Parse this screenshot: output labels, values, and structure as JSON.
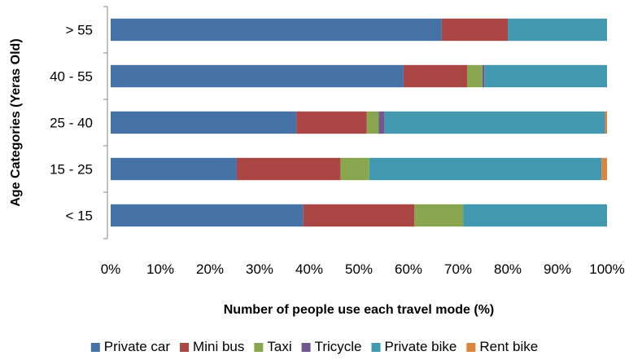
{
  "chart_data": {
    "type": "bar",
    "orientation": "horizontal",
    "stacked": "percent",
    "categories": [
      "< 15",
      "15 - 25",
      "25 - 40",
      "40 - 55",
      "> 55"
    ],
    "xlabel": "Number of people use each travel mode (%)",
    "ylabel": "Age Categories  (Yeras Old)",
    "xlim": [
      0,
      100
    ],
    "xticks": [
      "0%",
      "10%",
      "20%",
      "30%",
      "40%",
      "50%",
      "60%",
      "70%",
      "80%",
      "90%",
      "100%"
    ],
    "grid": false,
    "legend_position": "bottom",
    "series": [
      {
        "name": "Private car",
        "color": "#4572A7",
        "values": [
          38.8,
          25.4,
          37.4,
          59.0,
          66.7
        ]
      },
      {
        "name": "Mini bus",
        "color": "#AA4643",
        "values": [
          22.4,
          20.9,
          14.2,
          12.8,
          13.3
        ]
      },
      {
        "name": "Taxi",
        "color": "#89A54E",
        "values": [
          9.8,
          5.8,
          2.4,
          3.1,
          0
        ]
      },
      {
        "name": "Tricycle",
        "color": "#71588F",
        "values": [
          0,
          0,
          1.2,
          0.4,
          0
        ]
      },
      {
        "name": "Private bike",
        "color": "#4198AF",
        "values": [
          29.0,
          46.8,
          44.4,
          24.7,
          20.0
        ]
      },
      {
        "name": "Rent bike",
        "color": "#DB843D",
        "values": [
          0,
          1.1,
          0.4,
          0,
          0
        ]
      }
    ]
  }
}
